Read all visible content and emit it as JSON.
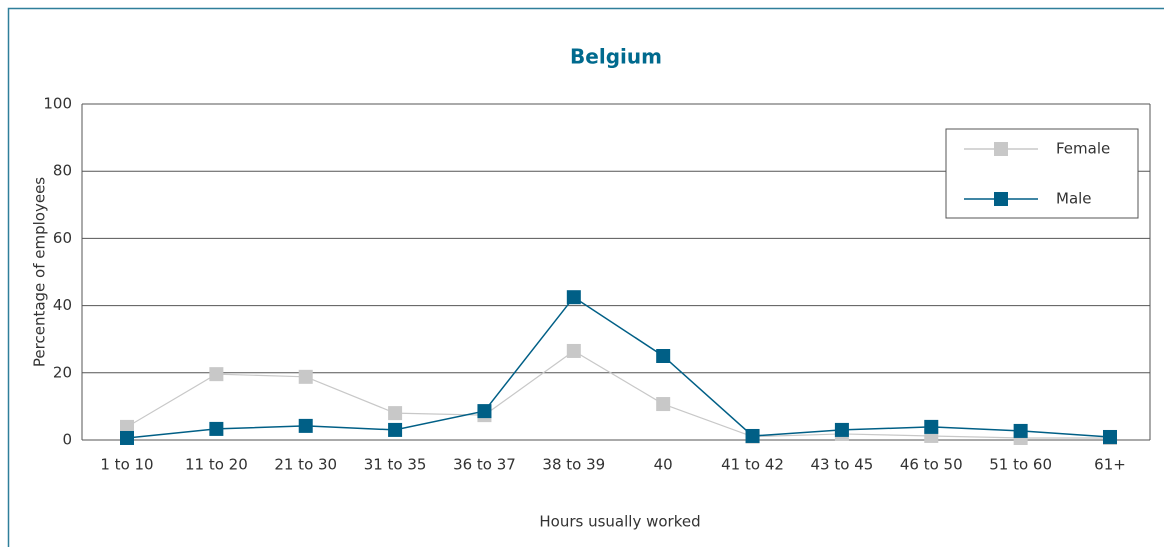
{
  "chart_data": {
    "type": "line",
    "title": "Belgium",
    "x_label": "Hours usually worked",
    "y_label": "Percentage of employees",
    "categories": [
      "1 to 10",
      "11 to 20",
      "21 to 30",
      "31 to 35",
      "36 to 37",
      "38 to 39",
      "40",
      "41 to 42",
      "43 to 45",
      "46 to 50",
      "51 to 60",
      "61+"
    ],
    "series": [
      {
        "name": "Female",
        "color": "#c8c8c8",
        "values": [
          3.9,
          19.6,
          18.8,
          8,
          7.4,
          26.5,
          10.7,
          1,
          1.8,
          1.2,
          0.6,
          0.6
        ]
      },
      {
        "name": "Male",
        "color": "#005f86",
        "values": [
          0.6,
          3.3,
          4.2,
          3,
          8.6,
          42.5,
          25,
          1.2,
          3,
          3.9,
          2.7,
          0.9
        ]
      }
    ],
    "ylim": [
      0,
      100
    ],
    "yticks": [
      0,
      20,
      40,
      60,
      80,
      100
    ],
    "grid": true,
    "legend": "top-right"
  }
}
